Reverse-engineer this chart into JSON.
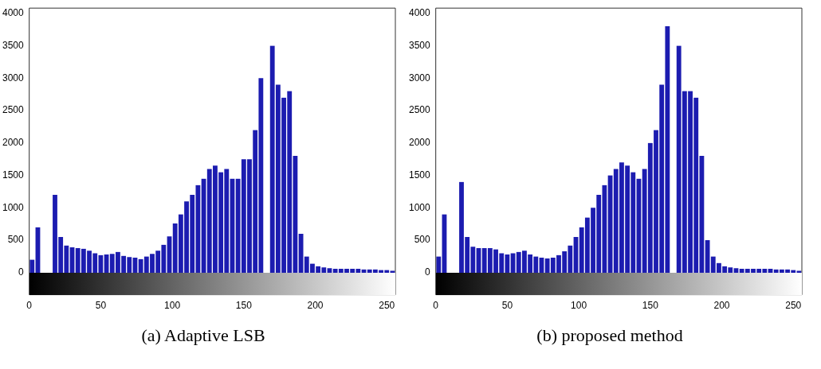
{
  "chart_data": [
    {
      "type": "histogram",
      "title": "(a) Adaptive LSB",
      "color": "#1c1cb0",
      "bins": [
        0,
        4,
        8,
        12,
        16,
        20,
        24,
        28,
        32,
        36,
        40,
        44,
        48,
        52,
        56,
        60,
        64,
        68,
        72,
        76,
        80,
        84,
        88,
        92,
        96,
        100,
        104,
        108,
        112,
        116,
        120,
        124,
        128,
        132,
        136,
        140,
        144,
        148,
        152,
        156,
        160,
        164,
        168,
        172,
        176,
        180,
        184,
        188,
        192,
        196,
        200,
        204,
        208,
        212,
        216,
        220,
        224,
        228,
        232,
        236,
        240,
        244,
        248,
        252,
        256
      ],
      "values": [
        200,
        700,
        null,
        null,
        1200,
        550,
        420,
        390,
        380,
        370,
        340,
        300,
        270,
        280,
        290,
        320,
        260,
        240,
        230,
        210,
        250,
        290,
        340,
        430,
        560,
        760,
        900,
        1100,
        1200,
        1350,
        1450,
        1600,
        1650,
        1550,
        1600,
        1450,
        1450,
        1750,
        1750,
        2200,
        3000,
        null,
        3500,
        2900,
        2700,
        2800,
        1800,
        600,
        250,
        140,
        100,
        80,
        70,
        60,
        60,
        60,
        60,
        60,
        50,
        50,
        50,
        40,
        40,
        30
      ],
      "xlim": [
        0,
        256
      ],
      "ylim": [
        -340,
        4080
      ],
      "xticks": [
        0,
        50,
        100,
        150,
        200,
        250
      ],
      "yticks": [
        0,
        500,
        1000,
        1500,
        2000,
        2500,
        3000,
        3500,
        4000
      ]
    },
    {
      "type": "histogram",
      "title": "(b) proposed method",
      "color": "#1c1cb0",
      "bins": [
        0,
        4,
        8,
        12,
        16,
        20,
        24,
        28,
        32,
        36,
        40,
        44,
        48,
        52,
        56,
        60,
        64,
        68,
        72,
        76,
        80,
        84,
        88,
        92,
        96,
        100,
        104,
        108,
        112,
        116,
        120,
        124,
        128,
        132,
        136,
        140,
        144,
        148,
        152,
        156,
        160,
        164,
        168,
        172,
        176,
        180,
        184,
        188,
        192,
        196,
        200,
        204,
        208,
        212,
        216,
        220,
        224,
        228,
        232,
        236,
        240,
        244,
        248,
        252,
        256
      ],
      "values": [
        250,
        900,
        null,
        null,
        1400,
        550,
        400,
        380,
        380,
        380,
        360,
        300,
        280,
        300,
        320,
        340,
        280,
        250,
        230,
        220,
        230,
        270,
        330,
        420,
        550,
        700,
        850,
        1000,
        1200,
        1350,
        1500,
        1600,
        1700,
        1650,
        1550,
        1450,
        1600,
        2000,
        2200,
        2900,
        3800,
        null,
        3500,
        2800,
        2800,
        2700,
        1800,
        500,
        250,
        150,
        100,
        80,
        70,
        60,
        60,
        60,
        60,
        60,
        60,
        50,
        50,
        50,
        40,
        30
      ],
      "xlim": [
        0,
        256
      ],
      "ylim": [
        -340,
        4080
      ],
      "xticks": [
        0,
        50,
        100,
        150,
        200,
        250
      ],
      "yticks": [
        0,
        500,
        1000,
        1500,
        2000,
        2500,
        3000,
        3500,
        4000
      ]
    }
  ]
}
